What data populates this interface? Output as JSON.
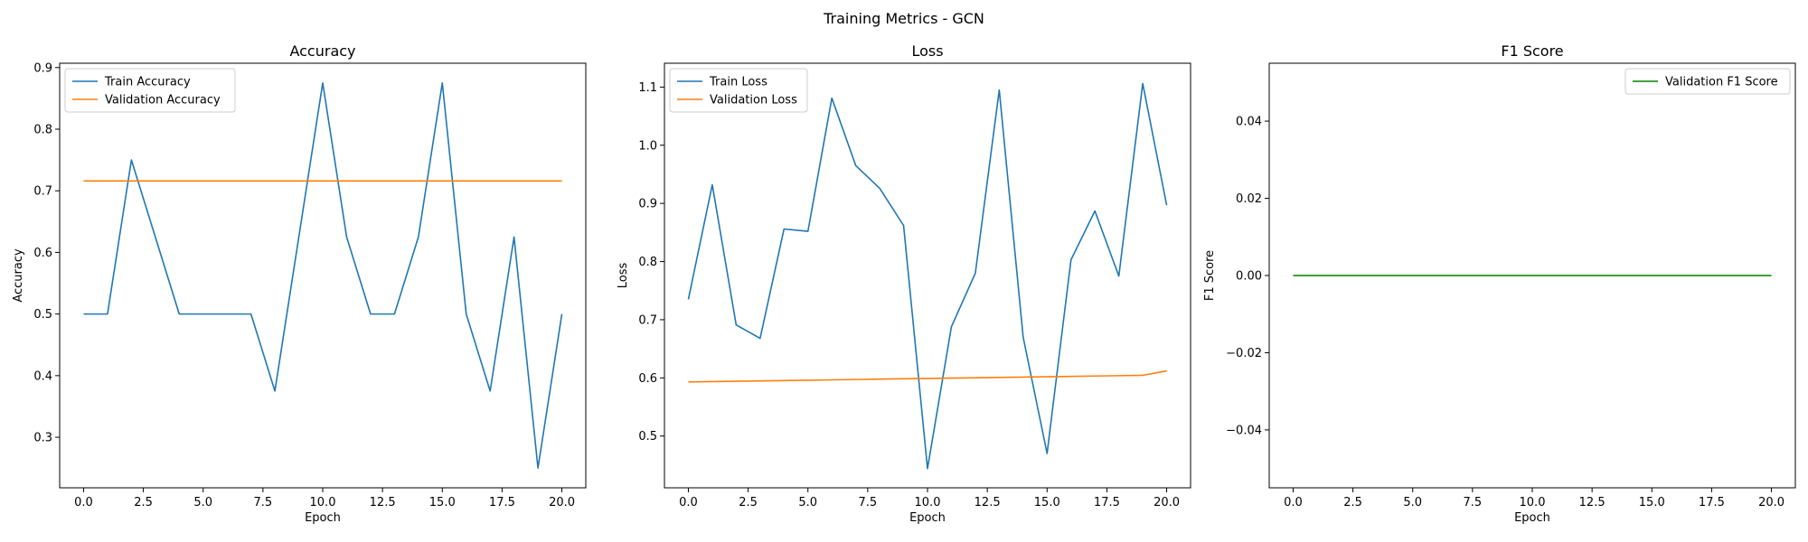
{
  "figure": {
    "suptitle": "Training Metrics - GCN"
  },
  "chart_data": [
    {
      "type": "line",
      "title": "Accuracy",
      "xlabel": "Epoch",
      "ylabel": "Accuracy",
      "xlim": [
        -1.0,
        21.0
      ],
      "ylim": [
        0.218,
        0.907
      ],
      "xticks": [
        0.0,
        2.5,
        5.0,
        7.5,
        10.0,
        12.5,
        15.0,
        17.5,
        20.0
      ],
      "xtick_labels": [
        "0.0",
        "2.5",
        "5.0",
        "7.5",
        "10.0",
        "12.5",
        "15.0",
        "17.5",
        "20.0"
      ],
      "yticks": [
        0.3,
        0.4,
        0.5,
        0.6,
        0.7,
        0.8,
        0.9
      ],
      "ytick_labels": [
        "0.3",
        "0.4",
        "0.5",
        "0.6",
        "0.7",
        "0.8",
        "0.9"
      ],
      "legend_position": "upper left",
      "grid": false,
      "x": [
        0,
        1,
        2,
        3,
        4,
        5,
        6,
        7,
        8,
        9,
        10,
        11,
        12,
        13,
        14,
        15,
        16,
        17,
        18,
        19,
        20
      ],
      "series": [
        {
          "name": "Train Accuracy",
          "color": "#1f77b4",
          "values": [
            0.5,
            0.5,
            0.75,
            0.625,
            0.5,
            0.5,
            0.5,
            0.5,
            0.375,
            0.625,
            0.875,
            0.625,
            0.5,
            0.5,
            0.625,
            0.875,
            0.5,
            0.375,
            0.625,
            0.25,
            0.5
          ]
        },
        {
          "name": "Validation Accuracy",
          "color": "#ff7f0e",
          "values": [
            0.716,
            0.716,
            0.716,
            0.716,
            0.716,
            0.716,
            0.716,
            0.716,
            0.716,
            0.716,
            0.716,
            0.716,
            0.716,
            0.716,
            0.716,
            0.716,
            0.716,
            0.716,
            0.716,
            0.716,
            0.716
          ]
        }
      ]
    },
    {
      "type": "line",
      "title": "Loss",
      "xlabel": "Epoch",
      "ylabel": "Loss",
      "xlim": [
        -1.0,
        21.0
      ],
      "ylim": [
        0.411,
        1.141
      ],
      "xticks": [
        0.0,
        2.5,
        5.0,
        7.5,
        10.0,
        12.5,
        15.0,
        17.5,
        20.0
      ],
      "xtick_labels": [
        "0.0",
        "2.5",
        "5.0",
        "7.5",
        "10.0",
        "12.5",
        "15.0",
        "17.5",
        "20.0"
      ],
      "yticks": [
        0.5,
        0.6,
        0.7,
        0.8,
        0.9,
        1.0,
        1.1
      ],
      "ytick_labels": [
        "0.5",
        "0.6",
        "0.7",
        "0.8",
        "0.9",
        "1.0",
        "1.1"
      ],
      "legend_position": "upper left",
      "grid": false,
      "x": [
        0,
        1,
        2,
        3,
        4,
        5,
        6,
        7,
        8,
        9,
        10,
        11,
        12,
        13,
        14,
        15,
        16,
        17,
        18,
        19,
        20
      ],
      "series": [
        {
          "name": "Train Loss",
          "color": "#1f77b4",
          "values": [
            0.735,
            0.932,
            0.691,
            0.668,
            0.856,
            0.852,
            1.081,
            0.965,
            0.926,
            0.862,
            0.444,
            0.688,
            0.78,
            1.095,
            0.67,
            0.47,
            0.803,
            0.887,
            0.775,
            1.106,
            0.897
          ]
        },
        {
          "name": "Validation Loss",
          "color": "#ff7f0e",
          "values": [
            0.593,
            0.5936,
            0.5942,
            0.5948,
            0.5954,
            0.596,
            0.5966,
            0.5972,
            0.5978,
            0.5984,
            0.599,
            0.5996,
            0.6002,
            0.6008,
            0.6014,
            0.602,
            0.6026,
            0.6032,
            0.6038,
            0.6044,
            0.612
          ]
        }
      ]
    },
    {
      "type": "line",
      "title": "F1 Score",
      "xlabel": "Epoch",
      "ylabel": "F1 Score",
      "xlim": [
        -1.0,
        21.0
      ],
      "ylim": [
        -0.055,
        0.055
      ],
      "xticks": [
        0.0,
        2.5,
        5.0,
        7.5,
        10.0,
        12.5,
        15.0,
        17.5,
        20.0
      ],
      "xtick_labels": [
        "0.0",
        "2.5",
        "5.0",
        "7.5",
        "10.0",
        "12.5",
        "15.0",
        "17.5",
        "20.0"
      ],
      "yticks": [
        -0.04,
        -0.02,
        0.0,
        0.02,
        0.04
      ],
      "ytick_labels": [
        "−0.04",
        "−0.02",
        "0.00",
        "0.02",
        "0.04"
      ],
      "legend_position": "upper right",
      "grid": false,
      "x": [
        0,
        1,
        2,
        3,
        4,
        5,
        6,
        7,
        8,
        9,
        10,
        11,
        12,
        13,
        14,
        15,
        16,
        17,
        18,
        19,
        20
      ],
      "series": [
        {
          "name": "Validation F1 Score",
          "color": "#008000",
          "values": [
            0,
            0,
            0,
            0,
            0,
            0,
            0,
            0,
            0,
            0,
            0,
            0,
            0,
            0,
            0,
            0,
            0,
            0,
            0,
            0,
            0
          ]
        }
      ]
    }
  ]
}
